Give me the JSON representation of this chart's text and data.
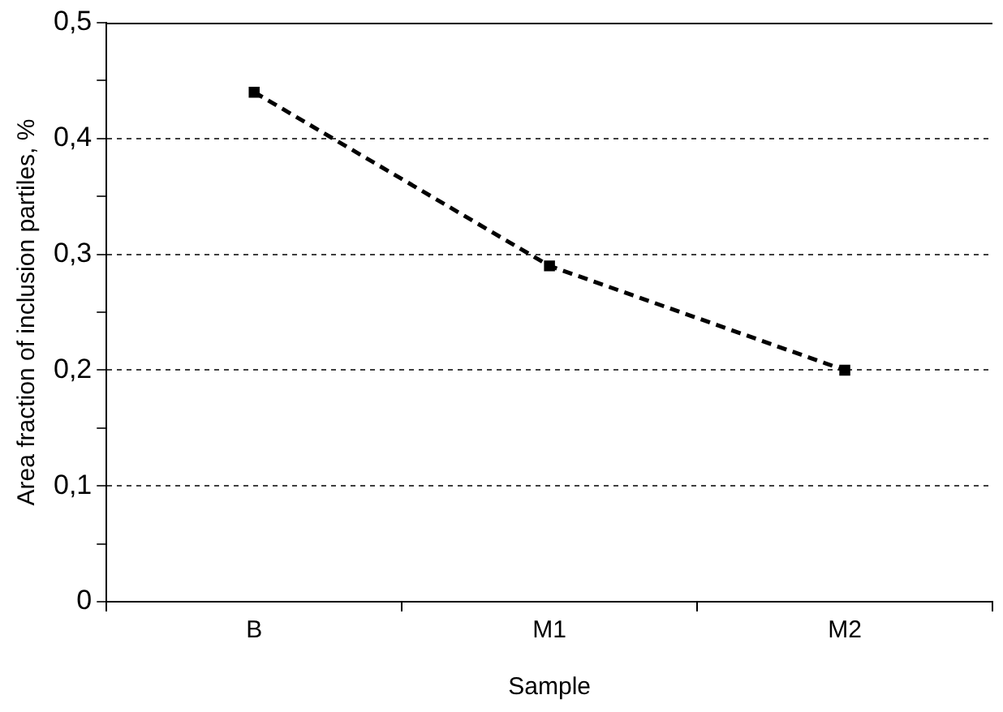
{
  "chart_data": {
    "type": "line",
    "xlabel": "Sample",
    "ylabel": "Area fraction of inclusion partiles, %",
    "categories": [
      "B",
      "M1",
      "M2"
    ],
    "series": [
      {
        "color": "#000000",
        "values": [
          0.44,
          0.29,
          0.2
        ]
      }
    ],
    "ylim": [
      0,
      0.5
    ],
    "yticks": [
      {
        "value": 0,
        "label": "0"
      },
      {
        "value": 0.05,
        "label": null
      },
      {
        "value": 0.1,
        "label": "0,1"
      },
      {
        "value": 0.15,
        "label": null
      },
      {
        "value": 0.2,
        "label": "0,2"
      },
      {
        "value": 0.25,
        "label": null
      },
      {
        "value": 0.3,
        "label": "0,3"
      },
      {
        "value": 0.35,
        "label": null
      },
      {
        "value": 0.4,
        "label": "0,4"
      },
      {
        "value": 0.45,
        "label": null
      },
      {
        "value": 0.5,
        "label": "0,5"
      }
    ],
    "grid": "y",
    "marker": "square",
    "line_style": "dashed",
    "legend": false
  }
}
